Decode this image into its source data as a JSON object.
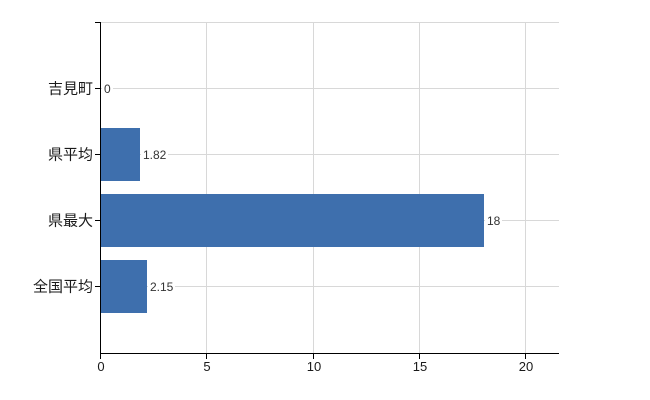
{
  "chart_data": {
    "type": "bar",
    "orientation": "horizontal",
    "categories": [
      "吉見町",
      "県平均",
      "県最大",
      "全国平均"
    ],
    "values": [
      0,
      1.82,
      18,
      2.15
    ],
    "value_labels": [
      "0",
      "1.82",
      "18",
      "2.15"
    ],
    "x_ticks": [
      0,
      5,
      10,
      15,
      20
    ],
    "x_tick_labels": [
      "0",
      "5",
      "10",
      "15",
      "20"
    ],
    "xlim": [
      0,
      21.55
    ],
    "grid": true,
    "legend_position": "none",
    "bar_color": "#3e6fad"
  },
  "colors": {
    "bar": "#3e6fad",
    "grid": "#d8d8d8",
    "axis": "#000000",
    "category_text": "#1a1a1a",
    "value_text": "#333333",
    "background": "#ffffff"
  }
}
